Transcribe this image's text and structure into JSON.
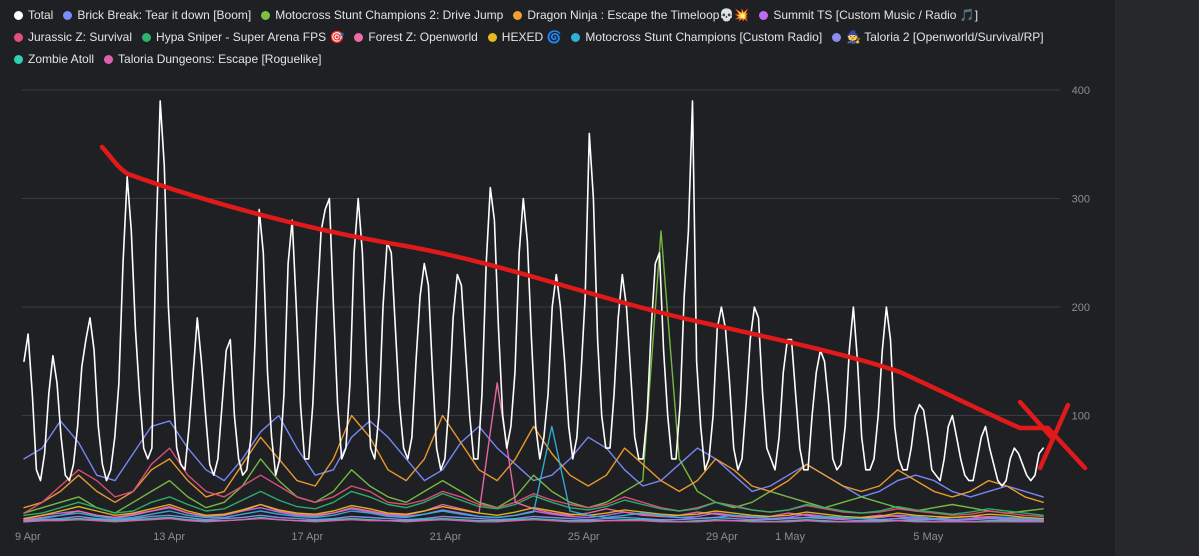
{
  "chart_data": {
    "type": "line",
    "title": "",
    "xlabel": "",
    "ylabel": "",
    "ylim": [
      0,
      400
    ],
    "y_ticks": [
      100,
      200,
      300,
      400
    ],
    "x_ticks": [
      "9 Apr",
      "13 Apr",
      "17 Apr",
      "21 Apr",
      "25 Apr",
      "29 Apr",
      "1 May",
      "5 May"
    ],
    "x_tick_days": [
      0,
      4,
      8,
      12,
      16,
      20,
      22,
      26
    ],
    "x_range_days": [
      0,
      29.5
    ],
    "grid": "horizontal",
    "legend_position": "top",
    "series": [
      {
        "name": "Total",
        "color": "#ffffff",
        "points_per_day": 4,
        "values": [
          150,
          175,
          120,
          50,
          40,
          65,
          120,
          155,
          130,
          80,
          45,
          40,
          55,
          90,
          145,
          170,
          190,
          160,
          90,
          55,
          40,
          50,
          80,
          130,
          240,
          320,
          270,
          180,
          120,
          70,
          60,
          70,
          260,
          390,
          330,
          200,
          130,
          70,
          55,
          50,
          90,
          140,
          190,
          150,
          100,
          55,
          45,
          60,
          110,
          160,
          170,
          100,
          60,
          45,
          50,
          80,
          170,
          290,
          250,
          140,
          80,
          45,
          60,
          120,
          240,
          280,
          200,
          110,
          60,
          60,
          110,
          200,
          270,
          290,
          300,
          200,
          110,
          60,
          70,
          130,
          250,
          300,
          250,
          150,
          70,
          60,
          100,
          200,
          260,
          250,
          180,
          110,
          70,
          60,
          80,
          150,
          210,
          240,
          220,
          140,
          70,
          50,
          60,
          110,
          190,
          230,
          220,
          160,
          100,
          60,
          60,
          120,
          240,
          310,
          280,
          180,
          100,
          70,
          90,
          140,
          250,
          300,
          260,
          170,
          90,
          60,
          80,
          120,
          200,
          230,
          200,
          150,
          90,
          60,
          80,
          140,
          210,
          360,
          300,
          170,
          100,
          70,
          70,
          120,
          190,
          230,
          200,
          140,
          80,
          60,
          60,
          100,
          180,
          240,
          250,
          160,
          100,
          60,
          60,
          110,
          210,
          270,
          390,
          150,
          90,
          50,
          60,
          100,
          180,
          200,
          180,
          130,
          70,
          50,
          60,
          110,
          170,
          200,
          190,
          120,
          70,
          60,
          50,
          80,
          140,
          170,
          170,
          120,
          70,
          50,
          50,
          100,
          140,
          160,
          150,
          110,
          60,
          50,
          55,
          90,
          160,
          200,
          150,
          80,
          50,
          50,
          60,
          100,
          160,
          200,
          170,
          90,
          60,
          50,
          50,
          70,
          100,
          110,
          105,
          80,
          50,
          45,
          40,
          60,
          90,
          100,
          80,
          60,
          45,
          40,
          40,
          60,
          80,
          90,
          70,
          55,
          40,
          35,
          40,
          60,
          70,
          65,
          55,
          45,
          40,
          45,
          65,
          70
        ]
      },
      {
        "name": "Brick Break: Tear it down [Boom]",
        "color": "#7b8cff",
        "values": [
          60,
          70,
          95,
          75,
          45,
          40,
          65,
          90,
          95,
          70,
          50,
          40,
          60,
          85,
          100,
          70,
          45,
          50,
          80,
          95,
          80,
          60,
          40,
          50,
          75,
          90,
          70,
          55,
          40,
          45,
          60,
          80,
          70,
          50,
          35,
          40,
          55,
          70,
          60,
          45,
          30,
          35,
          45,
          55,
          45,
          35,
          25,
          30,
          40,
          45,
          40,
          30,
          25,
          30,
          35,
          30,
          25
        ]
      },
      {
        "name": "Motocross Stunt Champions 2: Drive Jump",
        "color": "#7bc143",
        "values": [
          10,
          15,
          20,
          25,
          15,
          10,
          20,
          30,
          40,
          25,
          15,
          20,
          35,
          60,
          40,
          25,
          20,
          30,
          50,
          35,
          25,
          20,
          30,
          40,
          30,
          20,
          15,
          25,
          45,
          30,
          20,
          15,
          20,
          30,
          40,
          270,
          60,
          30,
          20,
          15,
          20,
          30,
          25,
          20,
          15,
          20,
          25,
          20,
          15,
          12,
          15,
          18,
          15,
          12,
          10,
          12,
          14
        ]
      },
      {
        "name": "Dragon Ninja : Escape the Timeloop💀💥",
        "color": "#f0a030",
        "values": [
          15,
          20,
          30,
          45,
          30,
          20,
          30,
          50,
          60,
          40,
          25,
          30,
          55,
          80,
          60,
          40,
          35,
          60,
          100,
          80,
          50,
          40,
          60,
          100,
          75,
          50,
          40,
          60,
          90,
          65,
          45,
          35,
          45,
          70,
          55,
          40,
          30,
          40,
          60,
          50,
          35,
          30,
          40,
          55,
          45,
          35,
          30,
          35,
          50,
          40,
          30,
          25,
          30,
          40,
          35,
          25,
          20
        ]
      },
      {
        "name": "Summit TS [Custom Music / Radio 🎵]",
        "color": "#c06cf0",
        "values": [
          5,
          8,
          10,
          12,
          8,
          6,
          9,
          12,
          15,
          10,
          7,
          8,
          12,
          15,
          11,
          8,
          7,
          10,
          14,
          11,
          8,
          7,
          9,
          13,
          10,
          7,
          6,
          8,
          12,
          9,
          7,
          6,
          8,
          11,
          9,
          7,
          6,
          7,
          10,
          8,
          6,
          5,
          6,
          9,
          7,
          6,
          5,
          6,
          8,
          7,
          5,
          4,
          5,
          7,
          6,
          5,
          4
        ]
      },
      {
        "name": "Jurassic Z: Survival",
        "color": "#e0507a",
        "values": [
          10,
          20,
          35,
          50,
          40,
          25,
          30,
          55,
          70,
          45,
          30,
          25,
          35,
          45,
          35,
          25,
          20,
          25,
          35,
          30,
          20,
          18,
          22,
          30,
          25,
          18,
          15,
          20,
          28,
          22,
          18,
          15,
          18,
          25,
          20,
          15,
          12,
          15,
          20,
          17,
          13,
          11,
          13,
          17,
          14,
          11,
          10,
          11,
          14,
          12,
          10,
          8,
          9,
          12,
          10,
          8,
          7
        ]
      },
      {
        "name": "Hypa Sniper - Super Arena FPS 🎯",
        "color": "#2fb36b",
        "values": [
          8,
          10,
          15,
          20,
          15,
          10,
          12,
          20,
          25,
          18,
          12,
          14,
          22,
          30,
          22,
          16,
          14,
          20,
          30,
          25,
          18,
          15,
          20,
          28,
          22,
          16,
          14,
          18,
          26,
          20,
          15,
          13,
          16,
          22,
          18,
          14,
          12,
          14,
          20,
          16,
          13,
          11,
          13,
          18,
          15,
          12,
          10,
          12,
          16,
          13,
          11,
          9,
          11,
          14,
          12,
          10,
          8
        ]
      },
      {
        "name": "Forest Z: Openworld",
        "color": "#f06aa8",
        "values": [
          4,
          6,
          8,
          12,
          8,
          6,
          8,
          12,
          16,
          10,
          7,
          8,
          12,
          18,
          12,
          9,
          8,
          10,
          15,
          12,
          9,
          8,
          12,
          18,
          14,
          10,
          130,
          20,
          14,
          10,
          8,
          10,
          14,
          11,
          8,
          7,
          8,
          11,
          9,
          7,
          6,
          7,
          10,
          8,
          6,
          5,
          6,
          8,
          7,
          5,
          5,
          6,
          7,
          6,
          5,
          4,
          5
        ]
      },
      {
        "name": "HEXED 🌀",
        "color": "#e8b820",
        "values": [
          5,
          8,
          12,
          16,
          12,
          8,
          10,
          14,
          18,
          12,
          8,
          9,
          13,
          18,
          13,
          10,
          9,
          12,
          17,
          14,
          10,
          9,
          12,
          16,
          13,
          10,
          8,
          11,
          15,
          12,
          9,
          8,
          10,
          13,
          11,
          9,
          8,
          9,
          12,
          10,
          8,
          7,
          8,
          11,
          9,
          7,
          6,
          7,
          10,
          8,
          7,
          6,
          7,
          9,
          8,
          6,
          5
        ]
      },
      {
        "name": "Motocross Stunt Champions [Custom Radio]",
        "color": "#30b0d8",
        "values": [
          3,
          5,
          8,
          10,
          7,
          5,
          6,
          9,
          12,
          8,
          6,
          6,
          9,
          12,
          9,
          7,
          6,
          8,
          12,
          10,
          7,
          6,
          9,
          12,
          9,
          7,
          6,
          8,
          11,
          90,
          12,
          8,
          6,
          8,
          10,
          8,
          6,
          5,
          6,
          8,
          7,
          5,
          5,
          6,
          7,
          6,
          5,
          4,
          5,
          6,
          5,
          4,
          4,
          5,
          6,
          5,
          4
        ]
      },
      {
        "name": "🧙 Taloria 2 [Openworld/Survival/RP]",
        "color": "#8c8cf0",
        "values": [
          3,
          4,
          5,
          7,
          5,
          4,
          5,
          7,
          8,
          6,
          4,
          5,
          6,
          8,
          6,
          5,
          4,
          5,
          7,
          6,
          5,
          4,
          5,
          7,
          6,
          5,
          4,
          5,
          7,
          6,
          5,
          4,
          5,
          6,
          5,
          4,
          4,
          5,
          6,
          5,
          4,
          4,
          5,
          6,
          5,
          4,
          3,
          4,
          5,
          4,
          4,
          3,
          4,
          5,
          4,
          3,
          3
        ]
      },
      {
        "name": "Zombie Atoll",
        "color": "#30d0b8",
        "values": [
          2,
          3,
          4,
          5,
          4,
          3,
          4,
          5,
          6,
          4,
          3,
          3,
          4,
          6,
          4,
          3,
          3,
          4,
          5,
          4,
          3,
          3,
          4,
          5,
          4,
          3,
          3,
          4,
          5,
          4,
          3,
          3,
          3,
          4,
          4,
          3,
          2,
          3,
          4,
          3,
          3,
          2,
          3,
          4,
          3,
          2,
          2,
          3,
          3,
          3,
          2,
          2,
          2,
          3,
          3,
          2,
          2
        ]
      },
      {
        "name": "Taloria Dungeons: Escape [Roguelike]",
        "color": "#e060b0",
        "values": [
          2,
          3,
          3,
          4,
          3,
          2,
          3,
          4,
          5,
          3,
          2,
          3,
          4,
          5,
          4,
          3,
          2,
          3,
          4,
          3,
          3,
          2,
          3,
          4,
          3,
          2,
          2,
          3,
          4,
          3,
          2,
          2,
          3,
          3,
          3,
          2,
          2,
          2,
          3,
          3,
          2,
          2,
          2,
          3,
          2,
          2,
          2,
          2,
          3,
          2,
          2,
          2,
          2,
          2,
          2,
          2,
          2
        ]
      }
    ]
  },
  "annotation": {
    "color": "#e01a1a"
  }
}
